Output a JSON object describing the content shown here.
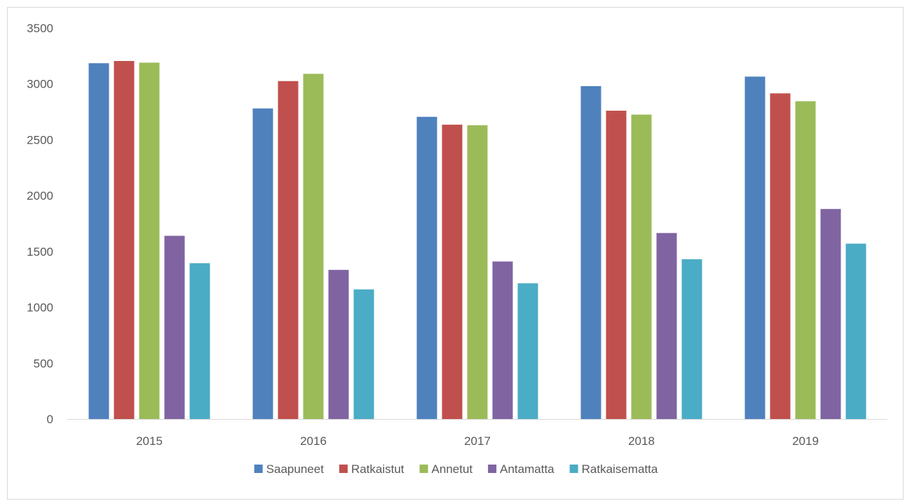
{
  "chart_data": {
    "type": "bar",
    "title": "",
    "xlabel": "",
    "ylabel": "",
    "categories": [
      "2015",
      "2016",
      "2017",
      "2018",
      "2019"
    ],
    "series": [
      {
        "name": "Saapuneet",
        "color": "#4f81bd",
        "values": [
          3185,
          2780,
          2705,
          2980,
          3065
        ]
      },
      {
        "name": "Ratkaistut",
        "color": "#c0504d",
        "values": [
          3205,
          3025,
          2635,
          2760,
          2915
        ]
      },
      {
        "name": "Annetut",
        "color": "#9bbb59",
        "values": [
          3190,
          3090,
          2630,
          2725,
          2845
        ]
      },
      {
        "name": "Antamatta",
        "color": "#8064a2",
        "values": [
          1640,
          1335,
          1410,
          1665,
          1880
        ]
      },
      {
        "name": "Ratkaisematta",
        "color": "#4bacc6",
        "values": [
          1395,
          1160,
          1215,
          1430,
          1570
        ]
      }
    ],
    "ylim": [
      0,
      3500
    ],
    "yticks": [
      0,
      500,
      1000,
      1500,
      2000,
      2500,
      3000,
      3500
    ],
    "grid": false,
    "legend_position": "bottom"
  }
}
